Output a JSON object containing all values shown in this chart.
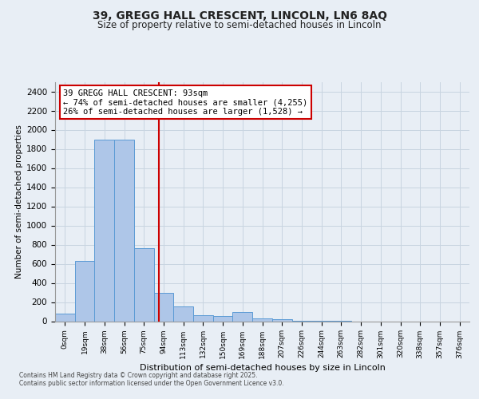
{
  "title1": "39, GREGG HALL CRESCENT, LINCOLN, LN6 8AQ",
  "title2": "Size of property relative to semi-detached houses in Lincoln",
  "xlabel": "Distribution of semi-detached houses by size in Lincoln",
  "ylabel": "Number of semi-detached properties",
  "footnote": "Contains HM Land Registry data © Crown copyright and database right 2025.\nContains public sector information licensed under the Open Government Licence v3.0.",
  "bar_labels": [
    "0sqm",
    "19sqm",
    "38sqm",
    "56sqm",
    "75sqm",
    "94sqm",
    "113sqm",
    "132sqm",
    "150sqm",
    "169sqm",
    "188sqm",
    "207sqm",
    "226sqm",
    "244sqm",
    "263sqm",
    "282sqm",
    "301sqm",
    "320sqm",
    "338sqm",
    "357sqm",
    "376sqm"
  ],
  "bar_values": [
    80,
    630,
    1900,
    1900,
    760,
    300,
    155,
    65,
    55,
    100,
    30,
    25,
    5,
    2,
    2,
    0,
    0,
    0,
    0,
    0,
    0
  ],
  "bar_color": "#aec6e8",
  "bar_edge_color": "#5b9bd5",
  "vline_x": 4.74,
  "vline_color": "#cc0000",
  "annotation_line1": "39 GREGG HALL CRESCENT: 93sqm",
  "annotation_line2": "← 74% of semi-detached houses are smaller (4,255)",
  "annotation_line3": "26% of semi-detached houses are larger (1,528) →",
  "annotation_box_color": "#cc0000",
  "annotation_bg": "#ffffff",
  "ylim": [
    0,
    2500
  ],
  "yticks": [
    0,
    200,
    400,
    600,
    800,
    1000,
    1200,
    1400,
    1600,
    1800,
    2000,
    2200,
    2400
  ],
  "grid_color": "#c8d4e0",
  "bg_color": "#e8eef5",
  "plot_bg": "#e8eef5",
  "title1_fontsize": 10,
  "title2_fontsize": 8.5,
  "xlabel_fontsize": 8,
  "ylabel_fontsize": 7.5,
  "tick_fontsize": 7.5,
  "xtick_fontsize": 6.5,
  "annot_fontsize": 7.5,
  "footnote_fontsize": 5.5
}
